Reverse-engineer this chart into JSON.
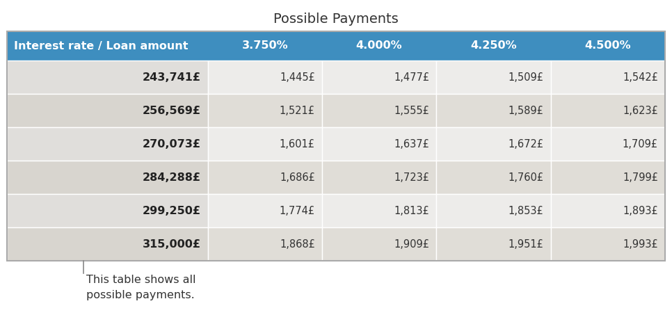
{
  "title": "Possible Payments",
  "header_bg": "#3E8EBF",
  "header_text_color": "#FFFFFF",
  "col_header": "Interest rate / Loan amount",
  "col_rates": [
    "3.750%",
    "4.000%",
    "4.250%",
    "4.500%"
  ],
  "row_labels": [
    "243,741£",
    "256,569£",
    "270,073£",
    "284,288£",
    "299,250£",
    "315,000£"
  ],
  "cell_data": [
    [
      "1,445£",
      "1,477£",
      "1,509£",
      "1,542£"
    ],
    [
      "1,521£",
      "1,555£",
      "1,589£",
      "1,623£"
    ],
    [
      "1,601£",
      "1,637£",
      "1,672£",
      "1,709£"
    ],
    [
      "1,686£",
      "1,723£",
      "1,760£",
      "1,799£"
    ],
    [
      "1,774£",
      "1,813£",
      "1,853£",
      "1,893£"
    ],
    [
      "1,868£",
      "1,909£",
      "1,951£",
      "1,993£"
    ]
  ],
  "row_bg_odd": "#EDECEA",
  "row_bg_even": "#E0DDD7",
  "label_bg_odd": "#E0DEDB",
  "label_bg_even": "#D8D5CF",
  "cell_text_color": "#333333",
  "label_text_color": "#222222",
  "annotation_text": "This table shows all\npossible payments.",
  "title_fontsize": 14,
  "header_fontsize": 11.5,
  "cell_fontsize": 10.5,
  "label_fontsize": 11.5,
  "ann_fontsize": 11.5,
  "fig_width": 9.66,
  "fig_height": 4.76,
  "dpi": 100
}
